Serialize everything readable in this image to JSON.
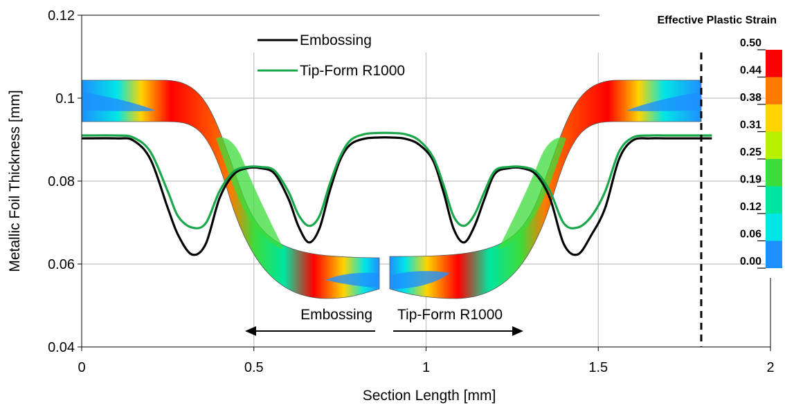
{
  "chart_data": {
    "type": "line",
    "title": "",
    "xlabel": "Section Length [mm]",
    "ylabel": "Metallic Foil Thickness [mm]",
    "xlim": [
      0,
      2
    ],
    "ylim": [
      0.04,
      0.12
    ],
    "x_ticks": [
      {
        "value": 0,
        "label": "0"
      },
      {
        "value": 0.5,
        "label": "0.5"
      },
      {
        "value": 1,
        "label": "1"
      },
      {
        "value": 1.5,
        "label": "1.5"
      },
      {
        "value": 2,
        "label": "2"
      }
    ],
    "y_ticks": [
      {
        "value": 0.04,
        "label": "0.04"
      },
      {
        "value": 0.06,
        "label": "0.06"
      },
      {
        "value": 0.08,
        "label": "0.08"
      },
      {
        "value": 0.1,
        "label": "0.1"
      },
      {
        "value": 0.12,
        "label": "0.12"
      }
    ],
    "grid": true,
    "legend_position": "top-center",
    "series": [
      {
        "name": "Embossing",
        "color": "#000000",
        "x": [
          0,
          0.1,
          0.15,
          0.2,
          0.25,
          0.28,
          0.32,
          0.36,
          0.4,
          0.44,
          0.48,
          0.52,
          0.56,
          0.6,
          0.63,
          0.66,
          0.69,
          0.72,
          0.75,
          0.78,
          0.82,
          0.86,
          0.9,
          0.94,
          0.98,
          1.02,
          1.05,
          1.08,
          1.11,
          1.14,
          1.17,
          1.2,
          1.24,
          1.28,
          1.32,
          1.36,
          1.4,
          1.44,
          1.48,
          1.52,
          1.56,
          1.6,
          1.65,
          1.7,
          1.8,
          1.83
        ],
        "y": [
          0.0903,
          0.0903,
          0.0898,
          0.0852,
          0.0735,
          0.067,
          0.0623,
          0.0648,
          0.0758,
          0.0815,
          0.0831,
          0.0831,
          0.0818,
          0.0758,
          0.069,
          0.0652,
          0.0685,
          0.0775,
          0.085,
          0.0888,
          0.0902,
          0.0905,
          0.0905,
          0.0902,
          0.0888,
          0.085,
          0.0775,
          0.0685,
          0.0652,
          0.069,
          0.0758,
          0.0818,
          0.0831,
          0.0831,
          0.0815,
          0.0758,
          0.0648,
          0.0623,
          0.067,
          0.0735,
          0.0852,
          0.0898,
          0.0903,
          0.0903,
          0.0903,
          0.0903
        ]
      },
      {
        "name": "Tip-Form R1000",
        "color": "#1aa64b",
        "x": [
          0,
          0.1,
          0.15,
          0.2,
          0.25,
          0.28,
          0.32,
          0.36,
          0.4,
          0.44,
          0.48,
          0.52,
          0.56,
          0.6,
          0.63,
          0.66,
          0.69,
          0.72,
          0.75,
          0.78,
          0.82,
          0.86,
          0.9,
          0.94,
          0.98,
          1.02,
          1.05,
          1.08,
          1.11,
          1.14,
          1.17,
          1.2,
          1.24,
          1.28,
          1.32,
          1.36,
          1.4,
          1.44,
          1.48,
          1.52,
          1.56,
          1.6,
          1.65,
          1.7,
          1.8,
          1.83
        ],
        "y": [
          0.091,
          0.091,
          0.0905,
          0.087,
          0.0775,
          0.0715,
          0.0688,
          0.0698,
          0.0775,
          0.0822,
          0.0834,
          0.0834,
          0.0825,
          0.0775,
          0.0718,
          0.0692,
          0.0715,
          0.0792,
          0.0858,
          0.0898,
          0.0913,
          0.0916,
          0.0916,
          0.0913,
          0.0898,
          0.0858,
          0.0792,
          0.0715,
          0.0692,
          0.0718,
          0.0775,
          0.0825,
          0.0834,
          0.0834,
          0.0822,
          0.0775,
          0.0698,
          0.0688,
          0.0715,
          0.0775,
          0.087,
          0.0905,
          0.091,
          0.091,
          0.091,
          0.091
        ]
      }
    ],
    "colorbar": {
      "title": "Effective Plastic Strain",
      "ticks": [
        "0.50",
        "0.44",
        "0.38",
        "0.31",
        "0.25",
        "0.19",
        "0.12",
        "0.06",
        "0.00"
      ],
      "colors": [
        "#ff0000",
        "#ff7a00",
        "#ffd400",
        "#b8f000",
        "#3cdc3c",
        "#00e6a0",
        "#00e6e6",
        "#1e90ff",
        "#0000ff"
      ]
    },
    "annotations": {
      "left_arrow": "Embossing",
      "right_arrow": "Tip-Form R1000"
    }
  }
}
